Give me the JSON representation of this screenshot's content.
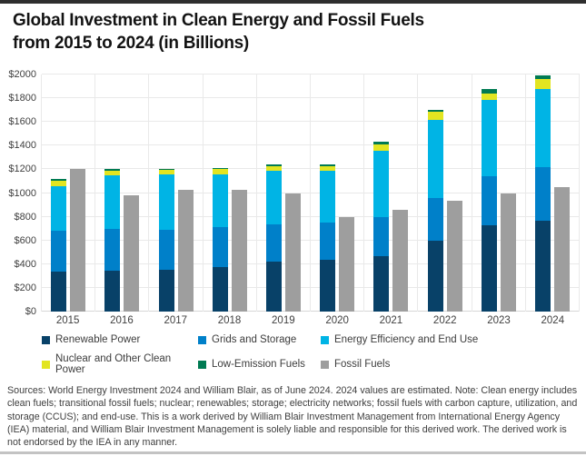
{
  "chart_data": {
    "type": "bar",
    "stacked": true,
    "title_lines": [
      "Global Investment in Clean Energy and Fossil Fuels",
      "from 2015 to 2024 (in Billions)"
    ],
    "categories": [
      "2015",
      "2016",
      "2017",
      "2018",
      "2019",
      "2020",
      "2021",
      "2022",
      "2023",
      "2024"
    ],
    "series": [
      {
        "name": "Renewable Power",
        "color": "#084168",
        "values": [
          340,
          345,
          350,
          375,
          420,
          440,
          465,
          600,
          730,
          770
        ]
      },
      {
        "name": "Grids and Storage",
        "color": "#0080c9",
        "values": [
          340,
          350,
          340,
          340,
          315,
          310,
          335,
          360,
          410,
          450
        ]
      },
      {
        "name": "Energy Efficiency and End Use",
        "color": "#00b4e5",
        "values": [
          380,
          455,
          465,
          445,
          455,
          435,
          555,
          655,
          645,
          655
        ]
      },
      {
        "name": "Nuclear and Other Clean Power",
        "color": "#e2e521",
        "values": [
          45,
          40,
          40,
          40,
          40,
          45,
          55,
          70,
          55,
          90
        ]
      },
      {
        "name": "Low-Emission Fuels",
        "color": "#007a52",
        "values": [
          15,
          15,
          10,
          10,
          10,
          15,
          25,
          20,
          35,
          30
        ]
      }
    ],
    "comparison_series": {
      "name": "Fossil Fuels",
      "color": "#9e9e9e",
      "values": [
        1200,
        980,
        1025,
        1030,
        995,
        795,
        860,
        935,
        1000,
        1050
      ]
    },
    "ylim": [
      0,
      2000
    ],
    "ytick_step": 200,
    "ytick_prefix": "$",
    "xlabel": "",
    "ylabel": "",
    "grid": true,
    "legend_position": "bottom"
  },
  "footnote": "Sources: World Energy Investment 2024 and William Blair, as of June 2024. 2024 values are estimated. Note: Clean energy includes clean fuels; transitional fossil fuels; nuclear; renewables; storage; electricity networks; fossil fuels with carbon capture, utilization, and storage (CCUS); and end-use. This is a work derived by William Blair Investment Management from International Energy Agency (IEA) material, and William Blair Investment Management is solely liable and responsible for this derived work. The derived work is not endorsed by the IEA in any manner."
}
